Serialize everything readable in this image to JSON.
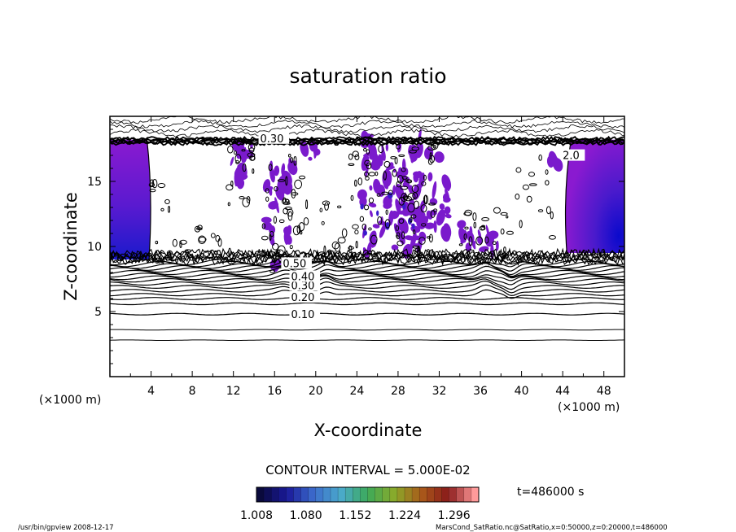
{
  "chart_data": {
    "type": "contour",
    "title": "saturation ratio",
    "xlabel": "X-coordinate",
    "ylabel": "Z-coordinate",
    "x_unit_left": "(×1000 m)",
    "x_unit_right": "(×1000 m)",
    "xlim": [
      0,
      50
    ],
    "ylim": [
      0,
      20
    ],
    "x_ticks": [
      4,
      8,
      12,
      16,
      20,
      24,
      28,
      32,
      36,
      40,
      44,
      48
    ],
    "y_ticks": [
      5,
      10,
      15
    ],
    "contour_labels": [
      {
        "text": "0.10",
        "x": 17.6,
        "z": 4.7
      },
      {
        "text": "0.20",
        "x": 17.6,
        "z": 6.0
      },
      {
        "text": "0.30",
        "x": 17.6,
        "z": 6.9
      },
      {
        "text": "0.40",
        "x": 17.6,
        "z": 7.6
      },
      {
        "text": "0.50",
        "x": 16.8,
        "z": 8.6
      },
      {
        "text": "0.30",
        "x": 14.6,
        "z": 18.2
      },
      {
        "text": "2.0",
        "x": 44.0,
        "z": 16.9
      }
    ],
    "contour_interval_text": "CONTOUR INTERVAL = 5.000E-02",
    "colorbar": {
      "tick_labels": [
        "1.008",
        "1.080",
        "1.152",
        "1.224",
        "1.296"
      ],
      "min": 1.008,
      "max": 1.332,
      "colors": [
        "#0a0a3c",
        "#1a1a9a",
        "#3c6ccc",
        "#4aaacc",
        "#3caa5a",
        "#8aaa2a",
        "#aa5a1a",
        "#8a1a1a",
        "#ff9a9a"
      ]
    },
    "time_label": "t=486000 s",
    "fill_colors": {
      "purple": "#7a1acc",
      "blue": "#1a1acc"
    }
  },
  "footer": {
    "left": "/usr/bin/gpview   2008-12-17",
    "right": "MarsCond_SatRatio.nc@SatRatio,x=0:50000,z=0:20000,t=486000"
  }
}
